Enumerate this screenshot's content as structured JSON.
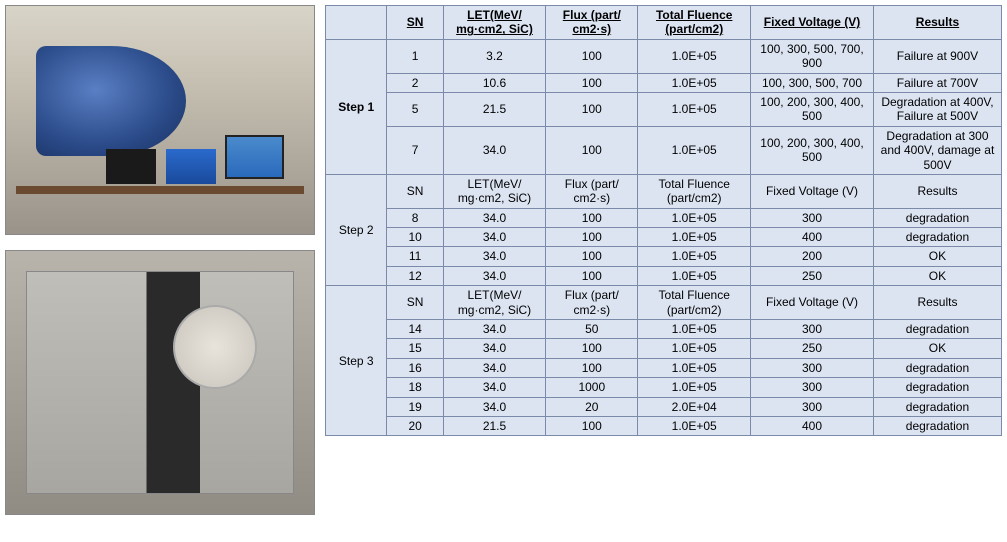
{
  "headers": {
    "sn": "SN",
    "let": "LET(MeV/ mg·cm2, SiC)",
    "flux": "Flux (part/ cm2·s)",
    "fluence": "Total Fluence (part/cm2)",
    "voltage": "Fixed Voltage (V)",
    "results": "Results"
  },
  "steps": [
    {
      "label": "Step 1",
      "rows": [
        {
          "sn": "1",
          "let": "3.2",
          "flux": "100",
          "fluence": "1.0E+05",
          "voltage": "100, 300, 500, 700, 900",
          "results": "Failure at 900V"
        },
        {
          "sn": "2",
          "let": "10.6",
          "flux": "100",
          "fluence": "1.0E+05",
          "voltage": "100, 300, 500, 700",
          "results": "Failure at 700V"
        },
        {
          "sn": "5",
          "let": "21.5",
          "flux": "100",
          "fluence": "1.0E+05",
          "voltage": "100, 200, 300, 400, 500",
          "results": "Degradation at 400V, Failure at 500V"
        },
        {
          "sn": "7",
          "let": "34.0",
          "flux": "100",
          "fluence": "1.0E+05",
          "voltage": "100, 200, 300, 400, 500",
          "results": "Degradation at 300 and 400V, damage at 500V"
        }
      ]
    },
    {
      "label": "Step 2",
      "rows": [
        {
          "sn": "8",
          "let": "34.0",
          "flux": "100",
          "fluence": "1.0E+05",
          "voltage": "300",
          "results": "degradation"
        },
        {
          "sn": "10",
          "let": "34.0",
          "flux": "100",
          "fluence": "1.0E+05",
          "voltage": "400",
          "results": "degradation"
        },
        {
          "sn": "11",
          "let": "34.0",
          "flux": "100",
          "fluence": "1.0E+05",
          "voltage": "200",
          "results": "OK"
        },
        {
          "sn": "12",
          "let": "34.0",
          "flux": "100",
          "fluence": "1.0E+05",
          "voltage": "250",
          "results": "OK"
        }
      ]
    },
    {
      "label": "Step 3",
      "rows": [
        {
          "sn": "14",
          "let": "34.0",
          "flux": "50",
          "fluence": "1.0E+05",
          "voltage": "300",
          "results": "degradation"
        },
        {
          "sn": "15",
          "let": "34.0",
          "flux": "100",
          "fluence": "1.0E+05",
          "voltage": "250",
          "results": "OK"
        },
        {
          "sn": "16",
          "let": "34.0",
          "flux": "100",
          "fluence": "1.0E+05",
          "voltage": "300",
          "results": "degradation"
        },
        {
          "sn": "18",
          "let": "34.0",
          "flux": "1000",
          "fluence": "1.0E+05",
          "voltage": "300",
          "results": "degradation"
        },
        {
          "sn": "19",
          "let": "34.0",
          "flux": "20",
          "fluence": "2.0E+04",
          "voltage": "300",
          "results": "degradation"
        },
        {
          "sn": "20",
          "let": "21.5",
          "flux": "100",
          "fluence": "1.0E+05",
          "voltage": "400",
          "results": "degradation"
        }
      ]
    }
  ]
}
